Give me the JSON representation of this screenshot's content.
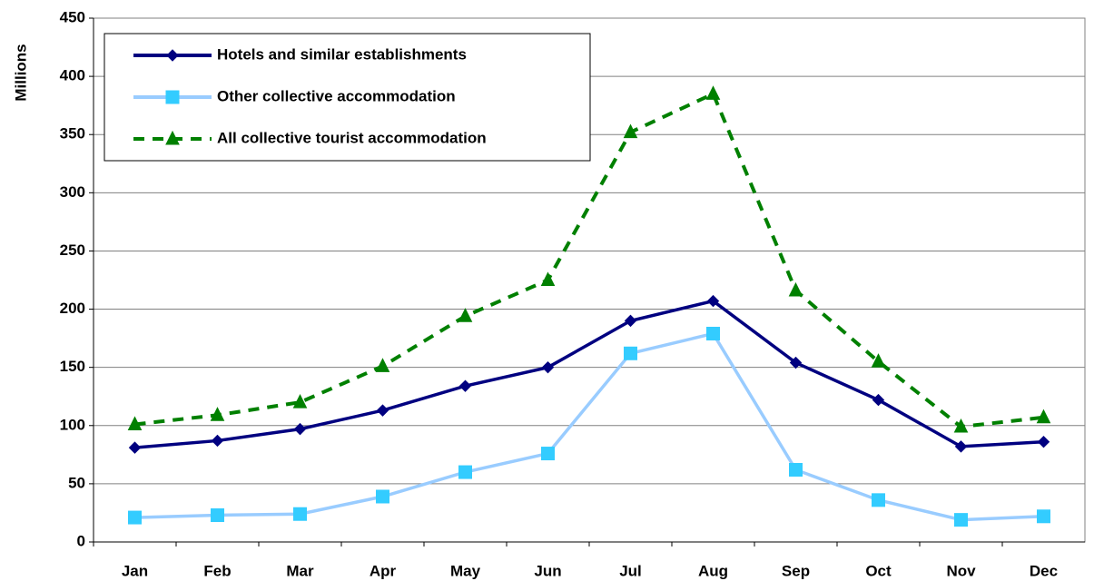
{
  "chart_data": {
    "type": "line",
    "y_label": "Millions",
    "categories": [
      "Jan",
      "Feb",
      "Mar",
      "Apr",
      "May",
      "Jun",
      "Jul",
      "Aug",
      "Sep",
      "Oct",
      "Nov",
      "Dec"
    ],
    "series": [
      {
        "name": "Hotels and similar establishments",
        "color": "#000080",
        "marker": "diamond",
        "marker_color": "#000080",
        "dash": false,
        "values": [
          81,
          87,
          97,
          113,
          134,
          150,
          190,
          207,
          154,
          122,
          82,
          86
        ]
      },
      {
        "name": "Other collective accommodation",
        "color": "#99ccff",
        "marker": "square",
        "marker_color": "#33ccff",
        "dash": false,
        "values": [
          21,
          23,
          24,
          39,
          60,
          76,
          162,
          179,
          62,
          36,
          19,
          22
        ]
      },
      {
        "name": "All collective tourist accommodation",
        "color": "#008000",
        "marker": "triangle",
        "marker_color": "#008000",
        "dash": true,
        "values": [
          101,
          109,
          120,
          151,
          194,
          225,
          352,
          385,
          216,
          155,
          99,
          107
        ]
      }
    ],
    "ylim": [
      0,
      450
    ],
    "yticks": [
      0,
      50,
      100,
      150,
      200,
      250,
      300,
      350,
      400,
      450
    ],
    "grid": true,
    "legend": "top-left"
  }
}
